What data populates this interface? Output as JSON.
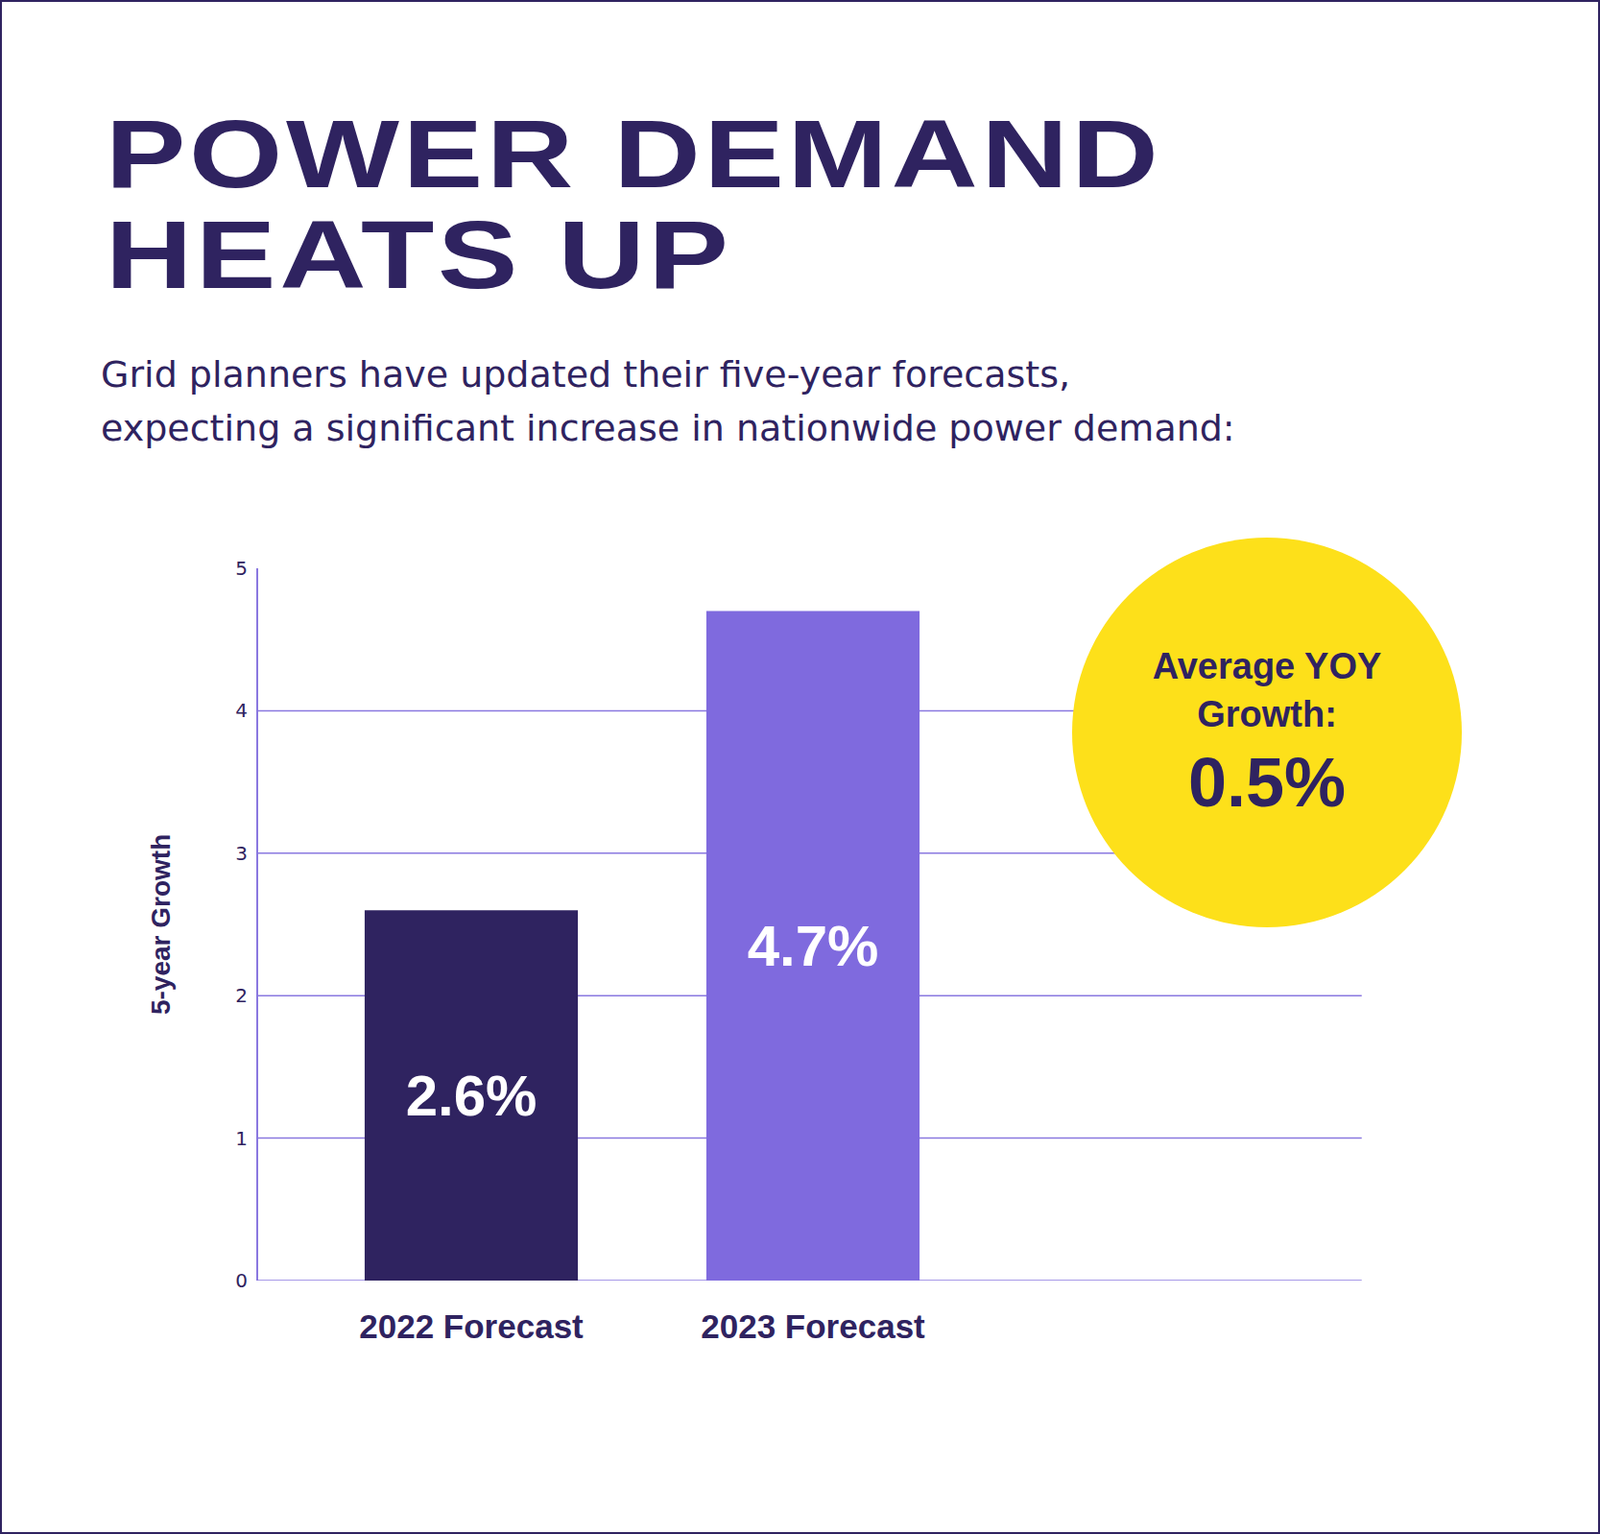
{
  "chart_data": {
    "type": "bar",
    "title": [
      "POWER DEMAND",
      "HEATS UP"
    ],
    "subtitle": [
      "Grid planners have updated their five-year forecasts,",
      "expecting a significant increase in nationwide power demand:"
    ],
    "categories": [
      "2022 Forecast",
      "2023 Forecast"
    ],
    "values": [
      2.6,
      4.7
    ],
    "value_labels": [
      "2.6%",
      "4.7%"
    ],
    "colors": [
      "#2f2360",
      "#7f6ade"
    ],
    "data_labels": true,
    "ylabel": "5-year Growth",
    "ylim": [
      0,
      5
    ],
    "yticks": [
      0,
      1,
      2,
      3,
      4,
      5
    ],
    "grid": true,
    "callout": {
      "text": [
        "Average YOY",
        "Growth:"
      ],
      "value": "0.5%"
    }
  }
}
